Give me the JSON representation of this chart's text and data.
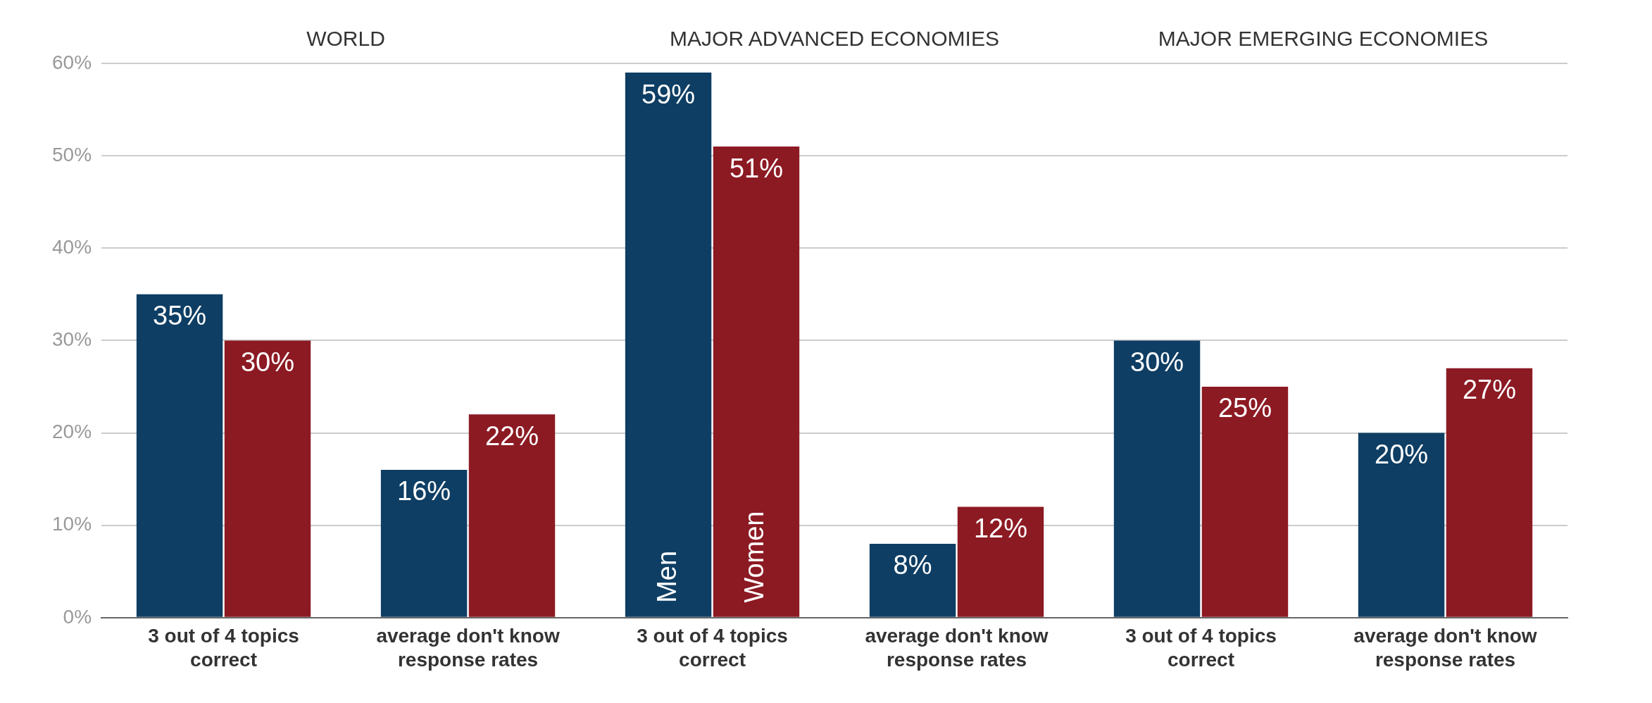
{
  "chart_data": {
    "type": "bar",
    "annotations": [
      "WORLD",
      "MAJOR ADVANCED ECONOMIES",
      "MAJOR EMERGING ECONOMIES"
    ],
    "categories": [
      "3 out of 4 topics correct",
      "average don't know response rates",
      "3 out of 4 topics correct",
      "average don't know response rates",
      "3 out of 4 topics correct",
      "average don't know response rates"
    ],
    "series": [
      {
        "name": "Men",
        "color": "#0e3e64",
        "values": [
          35,
          16,
          59,
          8,
          30,
          20
        ],
        "value_labels": [
          "35%",
          "16%",
          "59%",
          "8%",
          "30%",
          "20%"
        ]
      },
      {
        "name": "Women",
        "color": "#8c1a23",
        "values": [
          30,
          22,
          51,
          12,
          25,
          27
        ],
        "value_labels": [
          "30%",
          "22%",
          "51%",
          "12%",
          "25%",
          "27%"
        ]
      }
    ],
    "ylim": [
      0,
      60
    ],
    "yticks": [
      {
        "value": 0,
        "label": "0%"
      },
      {
        "value": 10,
        "label": "10%"
      },
      {
        "value": 20,
        "label": "20%"
      },
      {
        "value": 30,
        "label": "30%"
      },
      {
        "value": 40,
        "label": "40%"
      },
      {
        "value": 50,
        "label": "50%"
      },
      {
        "value": 60,
        "label": "60%"
      }
    ],
    "grid": "y",
    "legend": false
  }
}
